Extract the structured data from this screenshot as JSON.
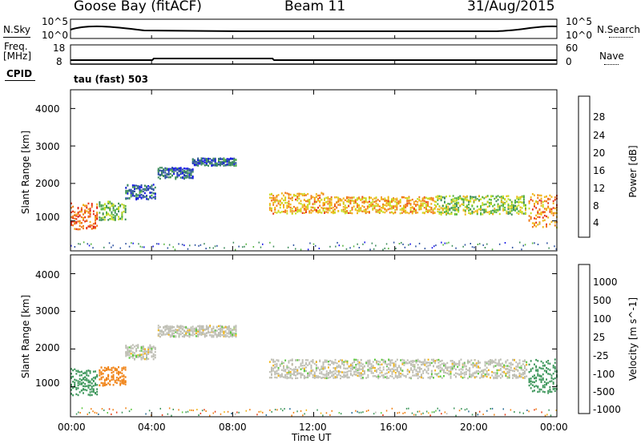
{
  "header": {
    "station": "Goose Bay (fitACF)",
    "beam": "Beam 11",
    "date": "31/Aug/2015"
  },
  "strips": {
    "nsky_label": "N.Sky",
    "nsky_ticks": [
      "10^5",
      "10^0"
    ],
    "nsearch_label": "N.Search",
    "nsearch_ticks": [
      "10^5",
      "10^0"
    ],
    "freq_label": "Freq.",
    "freq_unit": "[MHz]",
    "freq_ticks": [
      "18",
      "8"
    ],
    "nave_label": "Nave",
    "nave_ticks": [
      "60",
      "0"
    ],
    "cpid_label": "CPID",
    "cpid_value": "tau (fast) 503"
  },
  "colors": {
    "power": [
      "#1414e6",
      "#2a4fa0",
      "#3c8c5a",
      "#55b43c",
      "#c8dc1e",
      "#f0b414",
      "#f07814",
      "#e63214",
      "#dc0a0a"
    ],
    "velocity": [
      "#1e3cb4",
      "#2a6e96",
      "#3c965a",
      "#5ac83c",
      "#bebeb4",
      "#f0b414",
      "#f08214",
      "#e63c14",
      "#dc1414"
    ]
  },
  "chart_data": [
    {
      "type": "heatmap",
      "title": "",
      "xlabel": "Time UT",
      "ylabel": "Slant Range [km]",
      "colorbar_label": "Power [dB]",
      "colorbar_ticks": [
        "28",
        "24",
        "20",
        "16",
        "12",
        "8",
        "4"
      ],
      "x_ticks": [
        "00:00",
        "04:00",
        "08:00",
        "12:00",
        "16:00",
        "20:00",
        "00:00"
      ],
      "y_ticks": [
        "4000",
        "3000",
        "2000",
        "1000"
      ],
      "xlim": [
        0,
        24
      ],
      "ylim": [
        200,
        4500
      ],
      "grid": false,
      "bands": [
        {
          "t": [
            0.0,
            1.3
          ],
          "center": 1100,
          "width": 350,
          "value": 26
        },
        {
          "t": [
            1.4,
            2.7
          ],
          "center": 1250,
          "width": 250,
          "value": 14
        },
        {
          "t": [
            2.7,
            4.2
          ],
          "center": 1750,
          "width": 200,
          "value": 8
        },
        {
          "t": [
            4.3,
            6.0
          ],
          "center": 2250,
          "width": 150,
          "value": 8
        },
        {
          "t": [
            6.0,
            8.2
          ],
          "center": 2550,
          "width": 100,
          "value": 8
        },
        {
          "t": [
            9.8,
            12.5
          ],
          "center": 1450,
          "width": 280,
          "value": 22
        },
        {
          "t": [
            12.5,
            18.0
          ],
          "center": 1400,
          "width": 220,
          "value": 22
        },
        {
          "t": [
            18.0,
            22.5
          ],
          "center": 1400,
          "width": 250,
          "value": 16
        },
        {
          "t": [
            22.6,
            24.0
          ],
          "center": 1250,
          "width": 450,
          "value": 24
        }
      ]
    },
    {
      "type": "heatmap",
      "title": "",
      "xlabel": "Time UT",
      "ylabel": "Slant Range [km]",
      "colorbar_label": "Velocity [m s^-1]",
      "colorbar_ticks": [
        "1000",
        "500",
        "100",
        "25",
        "-25",
        "-100",
        "-500",
        "-1000"
      ],
      "x_ticks": [
        "00:00",
        "04:00",
        "08:00",
        "12:00",
        "16:00",
        "20:00",
        "00:00"
      ],
      "y_ticks": [
        "4000",
        "3000",
        "2000",
        "1000"
      ],
      "xlim": [
        0,
        24
      ],
      "ylim": [
        200,
        4500
      ],
      "grid": false,
      "bands": [
        {
          "t": [
            0.0,
            1.3
          ],
          "center": 1100,
          "width": 350,
          "value": 300
        },
        {
          "t": [
            1.4,
            2.7
          ],
          "center": 1250,
          "width": 250,
          "value": -200
        },
        {
          "t": [
            2.7,
            4.2
          ],
          "center": 1900,
          "width": 200,
          "value": 0
        },
        {
          "t": [
            4.3,
            8.2
          ],
          "center": 2450,
          "width": 150,
          "value": 0
        },
        {
          "t": [
            9.8,
            22.5
          ],
          "center": 1450,
          "width": 250,
          "value": 0
        },
        {
          "t": [
            22.6,
            24.0
          ],
          "center": 1250,
          "width": 450,
          "value": 150
        }
      ]
    }
  ]
}
